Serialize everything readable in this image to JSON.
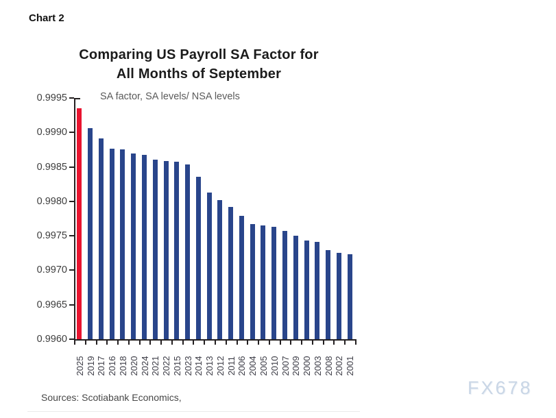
{
  "page": {
    "chart_label": "Chart 2",
    "sources": "Sources: Scotiabank Economics,",
    "watermark": "FX678"
  },
  "chart_data": {
    "type": "bar",
    "title_line1": "Comparing US Payroll SA Factor for",
    "title_line2": "All Months of September",
    "subtitle": "SA factor, SA levels/ NSA levels",
    "categories": [
      "2025",
      "2019",
      "2017",
      "2016",
      "2018",
      "2020",
      "2024",
      "2021",
      "2022",
      "2015",
      "2023",
      "2014",
      "2013",
      "2012",
      "2011",
      "2006",
      "2004",
      "2005",
      "2010",
      "2007",
      "2009",
      "2000",
      "2003",
      "2008",
      "2002",
      "2001"
    ],
    "values": [
      0.99935,
      0.99906,
      0.99891,
      0.99876,
      0.99875,
      0.99869,
      0.99867,
      0.99861,
      0.99859,
      0.99858,
      0.99854,
      0.99836,
      0.99813,
      0.99802,
      0.99792,
      0.99779,
      0.99767,
      0.99765,
      0.99763,
      0.99757,
      0.9975,
      0.99743,
      0.99741,
      0.99729,
      0.99725,
      0.99723
    ],
    "highlight_index": 0,
    "highlight_category": "2025",
    "y_ticks": [
      "0.9995",
      "0.9990",
      "0.9985",
      "0.9980",
      "0.9975",
      "0.9970",
      "0.9965",
      "0.9960"
    ],
    "ylim": [
      0.996,
      0.9995
    ],
    "xlabel": "",
    "ylabel": "",
    "grid": false,
    "legend": "none",
    "colors": {
      "highlight_bar": "#e8132f",
      "bar": "#29458b",
      "axis": "#231f20"
    }
  }
}
